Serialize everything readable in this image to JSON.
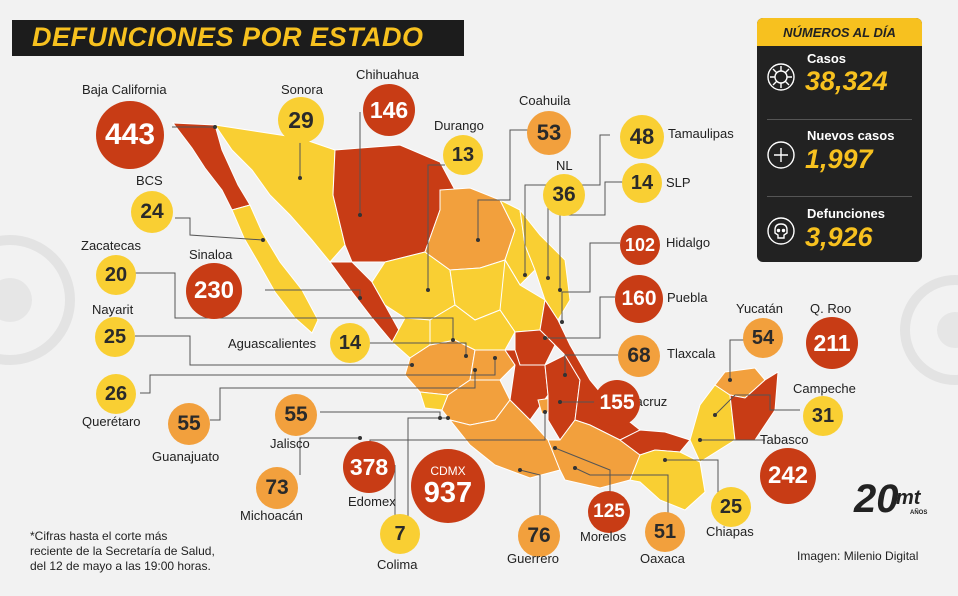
{
  "title": "DEFUNCIONES POR ESTADO",
  "colors": {
    "yellow": "#f9cf33",
    "orange": "#f2a03d",
    "red": "#c83c15",
    "accent": "#f7c11f",
    "dark": "#222222"
  },
  "states": [
    {
      "name": "Baja California",
      "value": "443",
      "tier": "red"
    },
    {
      "name": "Sonora",
      "value": "29",
      "tier": "yellow"
    },
    {
      "name": "Chihuahua",
      "value": "146",
      "tier": "red"
    },
    {
      "name": "Durango",
      "value": "13",
      "tier": "yellow"
    },
    {
      "name": "Coahuila",
      "value": "53",
      "tier": "orange"
    },
    {
      "name": "Tamaulipas",
      "value": "48",
      "tier": "yellow"
    },
    {
      "name": "NL",
      "value": "36",
      "tier": "yellow"
    },
    {
      "name": "SLP",
      "value": "14",
      "tier": "yellow"
    },
    {
      "name": "BCS",
      "value": "24",
      "tier": "yellow"
    },
    {
      "name": "Hidalgo",
      "value": "102",
      "tier": "red"
    },
    {
      "name": "Zacatecas",
      "value": "20",
      "tier": "yellow"
    },
    {
      "name": "Sinaloa",
      "value": "230",
      "tier": "red"
    },
    {
      "name": "Puebla",
      "value": "160",
      "tier": "red"
    },
    {
      "name": "Nayarit",
      "value": "25",
      "tier": "yellow"
    },
    {
      "name": "Aguascalientes",
      "value": "14",
      "tier": "yellow"
    },
    {
      "name": "Yucatán",
      "value": "54",
      "tier": "orange"
    },
    {
      "name": "Q. Roo",
      "value": "211",
      "tier": "red"
    },
    {
      "name": "Tlaxcala",
      "value": "68",
      "tier": "orange"
    },
    {
      "name": "Querétaro",
      "value": "26",
      "tier": "yellow"
    },
    {
      "name": "Veracruz",
      "value": "155",
      "tier": "red"
    },
    {
      "name": "Campeche",
      "value": "31",
      "tier": "yellow"
    },
    {
      "name": "Guanajuato",
      "value": "55",
      "tier": "orange"
    },
    {
      "name": "Jalisco",
      "value": "55",
      "tier": "orange"
    },
    {
      "name": "Tabasco",
      "value": "242",
      "tier": "red"
    },
    {
      "name": "Edomex",
      "value": "378",
      "tier": "red"
    },
    {
      "name": "Michoacán",
      "value": "73",
      "tier": "orange"
    },
    {
      "name": "Colima",
      "value": "7",
      "tier": "yellow"
    },
    {
      "name": "Guerrero",
      "value": "76",
      "tier": "orange"
    },
    {
      "name": "Morelos",
      "value": "125",
      "tier": "red"
    },
    {
      "name": "Oaxaca",
      "value": "51",
      "tier": "orange"
    },
    {
      "name": "Chiapas",
      "value": "25",
      "tier": "yellow"
    }
  ],
  "cdmx": {
    "name": "CDMX",
    "value": "937"
  },
  "panel": {
    "heading": "NÚMEROS AL DÍA",
    "stats": [
      {
        "label": "Casos",
        "value": "38,324",
        "icon": "virus-icon"
      },
      {
        "label": "Nuevos casos",
        "value": "1,997",
        "icon": "plus-circle-icon"
      },
      {
        "label": "Defunciones",
        "value": "3,926",
        "icon": "skull-icon"
      }
    ]
  },
  "footnote": [
    "*Cifras hasta el corte más",
    "reciente de la Secretaría de Salud,",
    "del 12 de mayo a las 19:00 horas."
  ],
  "credit": "Imagen: Milenio Digital",
  "logo": {
    "number": "20",
    "brand": "mt",
    "sub": "AÑOS"
  }
}
